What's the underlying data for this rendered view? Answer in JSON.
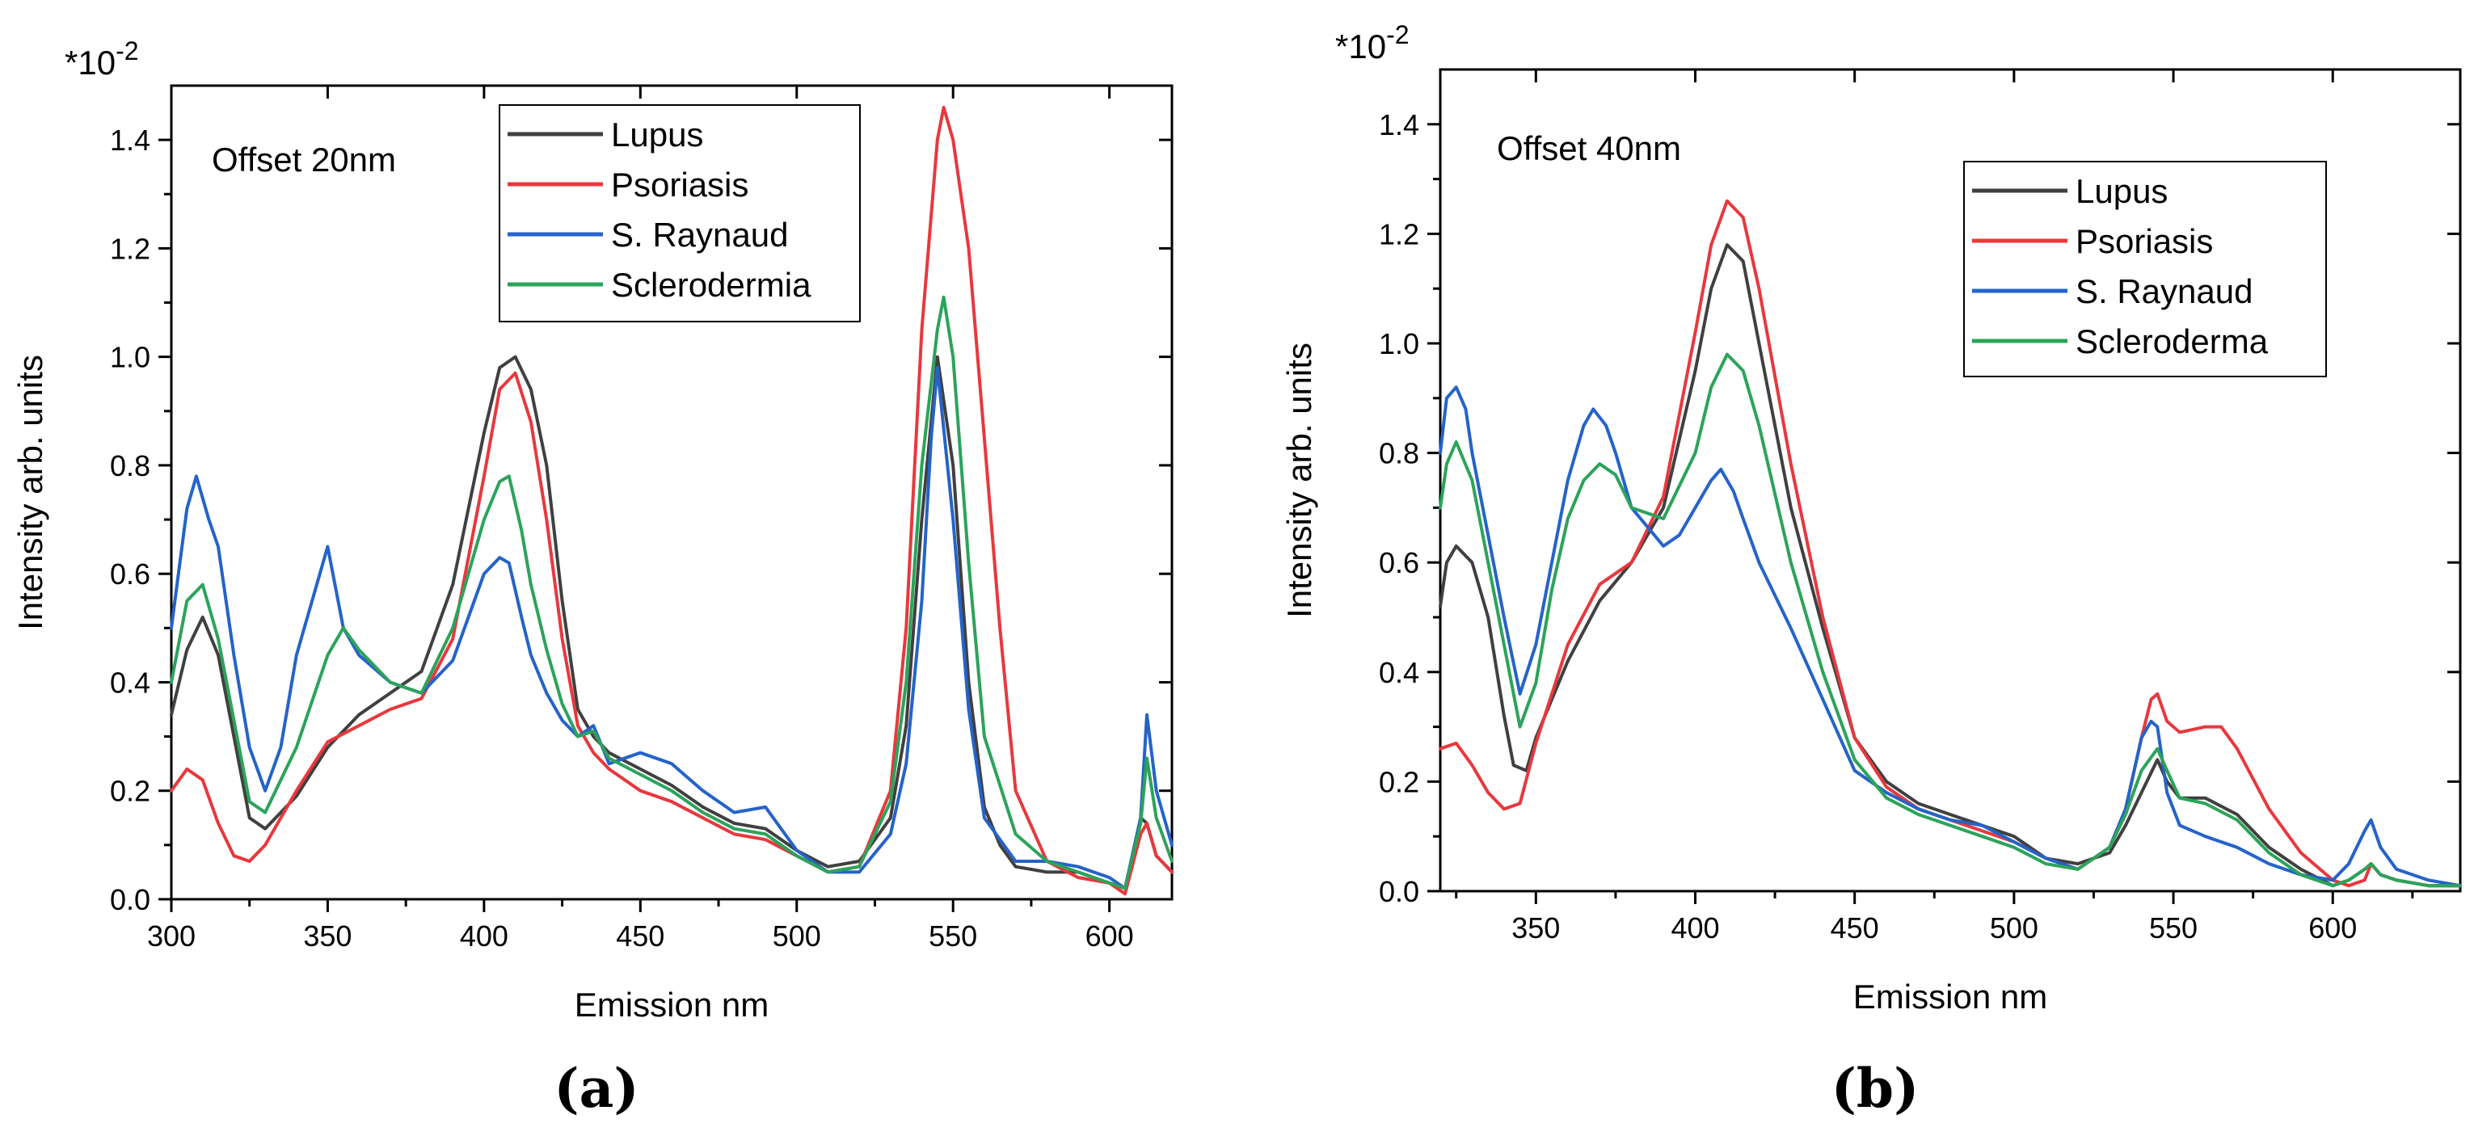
{
  "chart_data": [
    {
      "type": "line",
      "panel_label": "(a)",
      "annotation": "Offset 20nm",
      "xlabel": "Emission nm",
      "ylabel": "Intensity arb. units",
      "multiplier": "*10",
      "multiplier_exp": "-2",
      "xlim": [
        300,
        620
      ],
      "ylim": [
        0,
        1.5
      ],
      "xticks": [
        300,
        350,
        400,
        450,
        500,
        550,
        600
      ],
      "yticks": [
        0.0,
        0.2,
        0.4,
        0.6,
        0.8,
        1.0,
        1.2,
        1.4
      ],
      "xtick_labels": [
        "300",
        "350",
        "400",
        "450",
        "500",
        "550",
        "600"
      ],
      "ytick_labels": [
        "0.0",
        "0.2",
        "0.4",
        "0.6",
        "0.8",
        "1.0",
        "1.2",
        "1.4"
      ],
      "legend_position": "top-center",
      "series": [
        {
          "name": "Lupus",
          "color": "#404040",
          "x": [
            300,
            305,
            310,
            315,
            320,
            325,
            330,
            340,
            350,
            360,
            370,
            380,
            390,
            400,
            405,
            410,
            415,
            420,
            425,
            430,
            435,
            440,
            450,
            460,
            470,
            480,
            490,
            500,
            510,
            520,
            530,
            535,
            540,
            545,
            550,
            555,
            560,
            565,
            570,
            580,
            590,
            600,
            605,
            610,
            612,
            615,
            620
          ],
          "y": [
            0.34,
            0.46,
            0.52,
            0.45,
            0.3,
            0.15,
            0.13,
            0.19,
            0.28,
            0.34,
            0.38,
            0.42,
            0.58,
            0.86,
            0.98,
            1.0,
            0.94,
            0.8,
            0.55,
            0.35,
            0.3,
            0.27,
            0.24,
            0.21,
            0.17,
            0.14,
            0.13,
            0.09,
            0.06,
            0.07,
            0.15,
            0.32,
            0.7,
            1.0,
            0.8,
            0.4,
            0.17,
            0.1,
            0.06,
            0.05,
            0.05,
            0.03,
            0.02,
            0.15,
            0.14,
            0.08,
            0.05
          ]
        },
        {
          "name": "Psoriasis",
          "color": "#e8383d",
          "x": [
            300,
            305,
            310,
            315,
            320,
            325,
            330,
            340,
            350,
            360,
            370,
            380,
            390,
            400,
            405,
            410,
            415,
            420,
            425,
            430,
            435,
            440,
            450,
            460,
            470,
            480,
            490,
            500,
            510,
            520,
            530,
            535,
            540,
            545,
            547,
            550,
            555,
            560,
            565,
            570,
            580,
            590,
            600,
            605,
            610,
            612,
            615,
            620
          ],
          "y": [
            0.2,
            0.24,
            0.22,
            0.14,
            0.08,
            0.07,
            0.1,
            0.2,
            0.29,
            0.32,
            0.35,
            0.37,
            0.48,
            0.78,
            0.94,
            0.97,
            0.88,
            0.7,
            0.48,
            0.32,
            0.27,
            0.24,
            0.2,
            0.18,
            0.15,
            0.12,
            0.11,
            0.08,
            0.05,
            0.06,
            0.2,
            0.5,
            1.05,
            1.4,
            1.46,
            1.4,
            1.2,
            0.85,
            0.5,
            0.2,
            0.07,
            0.04,
            0.03,
            0.01,
            0.12,
            0.14,
            0.08,
            0.05
          ]
        },
        {
          "name": "S. Raynaud",
          "color": "#2563c9",
          "x": [
            300,
            305,
            308,
            312,
            315,
            320,
            325,
            330,
            335,
            340,
            345,
            350,
            355,
            360,
            370,
            380,
            390,
            400,
            405,
            408,
            412,
            415,
            420,
            425,
            430,
            435,
            440,
            450,
            460,
            470,
            480,
            490,
            500,
            510,
            520,
            530,
            535,
            540,
            543,
            545,
            550,
            555,
            560,
            570,
            580,
            590,
            600,
            605,
            610,
            612,
            615,
            620
          ],
          "y": [
            0.5,
            0.72,
            0.78,
            0.7,
            0.65,
            0.45,
            0.28,
            0.2,
            0.28,
            0.45,
            0.55,
            0.65,
            0.5,
            0.45,
            0.4,
            0.38,
            0.44,
            0.6,
            0.63,
            0.62,
            0.52,
            0.45,
            0.38,
            0.33,
            0.3,
            0.32,
            0.25,
            0.27,
            0.25,
            0.2,
            0.16,
            0.17,
            0.09,
            0.05,
            0.05,
            0.12,
            0.25,
            0.55,
            0.85,
            0.98,
            0.7,
            0.35,
            0.15,
            0.07,
            0.07,
            0.06,
            0.04,
            0.02,
            0.15,
            0.34,
            0.2,
            0.1
          ]
        },
        {
          "name": "Sclerodermia",
          "color": "#2ca35a",
          "x": [
            300,
            305,
            310,
            315,
            320,
            325,
            330,
            340,
            350,
            355,
            360,
            370,
            380,
            390,
            400,
            405,
            408,
            412,
            415,
            420,
            425,
            430,
            435,
            440,
            450,
            460,
            470,
            480,
            490,
            500,
            510,
            520,
            530,
            535,
            540,
            545,
            547,
            550,
            555,
            560,
            570,
            580,
            590,
            600,
            605,
            610,
            612,
            615,
            620
          ],
          "y": [
            0.4,
            0.55,
            0.58,
            0.48,
            0.33,
            0.18,
            0.16,
            0.28,
            0.45,
            0.5,
            0.46,
            0.4,
            0.38,
            0.5,
            0.7,
            0.77,
            0.78,
            0.68,
            0.58,
            0.46,
            0.36,
            0.3,
            0.31,
            0.26,
            0.23,
            0.2,
            0.16,
            0.13,
            0.12,
            0.08,
            0.05,
            0.06,
            0.18,
            0.4,
            0.8,
            1.05,
            1.11,
            1.0,
            0.62,
            0.3,
            0.12,
            0.07,
            0.05,
            0.03,
            0.02,
            0.14,
            0.26,
            0.15,
            0.07
          ]
        }
      ]
    },
    {
      "type": "line",
      "panel_label": "(b)",
      "annotation": "Offset 40nm",
      "xlabel": "Emission nm",
      "ylabel": "Intensity arb. units",
      "multiplier": "*10",
      "multiplier_exp": "-2",
      "xlim": [
        320,
        640
      ],
      "ylim": [
        0,
        1.5
      ],
      "xticks": [
        350,
        400,
        450,
        500,
        550,
        600
      ],
      "yticks": [
        0.0,
        0.2,
        0.4,
        0.6,
        0.8,
        1.0,
        1.2,
        1.4
      ],
      "xtick_labels": [
        "350",
        "400",
        "450",
        "500",
        "550",
        "600"
      ],
      "ytick_labels": [
        "0.0",
        "0.2",
        "0.4",
        "0.6",
        "0.8",
        "1.0",
        "1.2",
        "1.4"
      ],
      "legend_position": "top-right",
      "series": [
        {
          "name": "Lupus",
          "color": "#404040",
          "x": [
            320,
            322,
            325,
            330,
            335,
            340,
            343,
            347,
            350,
            355,
            360,
            370,
            380,
            390,
            400,
            405,
            410,
            415,
            420,
            430,
            440,
            450,
            460,
            470,
            480,
            490,
            500,
            510,
            520,
            530,
            535,
            540,
            545,
            548,
            552,
            560,
            570,
            580,
            590,
            600,
            605,
            610,
            612,
            615,
            620,
            630,
            640
          ],
          "y": [
            0.52,
            0.6,
            0.63,
            0.6,
            0.5,
            0.32,
            0.23,
            0.22,
            0.28,
            0.35,
            0.42,
            0.53,
            0.6,
            0.7,
            0.95,
            1.1,
            1.18,
            1.15,
            1.0,
            0.7,
            0.48,
            0.28,
            0.2,
            0.16,
            0.14,
            0.12,
            0.1,
            0.06,
            0.05,
            0.07,
            0.12,
            0.18,
            0.24,
            0.2,
            0.17,
            0.17,
            0.14,
            0.08,
            0.04,
            0.01,
            0.02,
            0.04,
            0.05,
            0.03,
            0.02,
            0.01,
            0.01
          ]
        },
        {
          "name": "Psoriasis",
          "color": "#e8383d",
          "x": [
            320,
            325,
            330,
            335,
            340,
            345,
            350,
            360,
            370,
            380,
            390,
            400,
            405,
            410,
            415,
            420,
            430,
            440,
            450,
            460,
            470,
            480,
            490,
            500,
            510,
            520,
            530,
            535,
            540,
            543,
            545,
            548,
            552,
            560,
            565,
            570,
            580,
            590,
            600,
            605,
            610,
            612,
            615,
            620,
            630,
            640
          ],
          "y": [
            0.26,
            0.27,
            0.23,
            0.18,
            0.15,
            0.16,
            0.27,
            0.45,
            0.56,
            0.6,
            0.72,
            1.02,
            1.18,
            1.26,
            1.23,
            1.1,
            0.78,
            0.5,
            0.28,
            0.19,
            0.15,
            0.13,
            0.11,
            0.09,
            0.06,
            0.04,
            0.08,
            0.15,
            0.28,
            0.35,
            0.36,
            0.31,
            0.29,
            0.3,
            0.3,
            0.26,
            0.15,
            0.07,
            0.02,
            0.01,
            0.02,
            0.05,
            0.03,
            0.02,
            0.01,
            0.01
          ]
        },
        {
          "name": "S. Raynaud",
          "color": "#2563c9",
          "x": [
            320,
            322,
            325,
            328,
            330,
            335,
            340,
            345,
            350,
            355,
            360,
            365,
            368,
            372,
            375,
            380,
            390,
            395,
            400,
            405,
            408,
            412,
            415,
            420,
            430,
            440,
            450,
            460,
            470,
            480,
            490,
            500,
            510,
            520,
            530,
            535,
            540,
            543,
            545,
            548,
            552,
            560,
            570,
            580,
            590,
            600,
            605,
            610,
            612,
            615,
            620,
            630,
            640
          ],
          "y": [
            0.8,
            0.9,
            0.92,
            0.88,
            0.8,
            0.65,
            0.5,
            0.36,
            0.45,
            0.6,
            0.75,
            0.85,
            0.88,
            0.85,
            0.8,
            0.7,
            0.63,
            0.65,
            0.7,
            0.75,
            0.77,
            0.73,
            0.68,
            0.6,
            0.48,
            0.35,
            0.22,
            0.18,
            0.15,
            0.13,
            0.12,
            0.09,
            0.06,
            0.04,
            0.08,
            0.15,
            0.28,
            0.31,
            0.3,
            0.18,
            0.12,
            0.1,
            0.08,
            0.05,
            0.03,
            0.02,
            0.05,
            0.11,
            0.13,
            0.08,
            0.04,
            0.02,
            0.01
          ]
        },
        {
          "name": "Scleroderma",
          "color": "#2ca35a",
          "x": [
            320,
            322,
            325,
            330,
            335,
            340,
            345,
            350,
            355,
            360,
            365,
            370,
            375,
            380,
            390,
            400,
            405,
            410,
            415,
            420,
            430,
            440,
            450,
            460,
            470,
            480,
            490,
            500,
            510,
            520,
            530,
            535,
            540,
            545,
            548,
            552,
            560,
            570,
            580,
            590,
            600,
            605,
            610,
            612,
            615,
            620,
            630,
            640
          ],
          "y": [
            0.7,
            0.78,
            0.82,
            0.75,
            0.6,
            0.45,
            0.3,
            0.38,
            0.55,
            0.68,
            0.75,
            0.78,
            0.76,
            0.7,
            0.68,
            0.8,
            0.92,
            0.98,
            0.95,
            0.85,
            0.6,
            0.4,
            0.24,
            0.17,
            0.14,
            0.12,
            0.1,
            0.08,
            0.05,
            0.04,
            0.08,
            0.14,
            0.22,
            0.26,
            0.22,
            0.17,
            0.16,
            0.13,
            0.07,
            0.03,
            0.01,
            0.02,
            0.04,
            0.05,
            0.03,
            0.02,
            0.01,
            0.01
          ]
        }
      ]
    }
  ]
}
